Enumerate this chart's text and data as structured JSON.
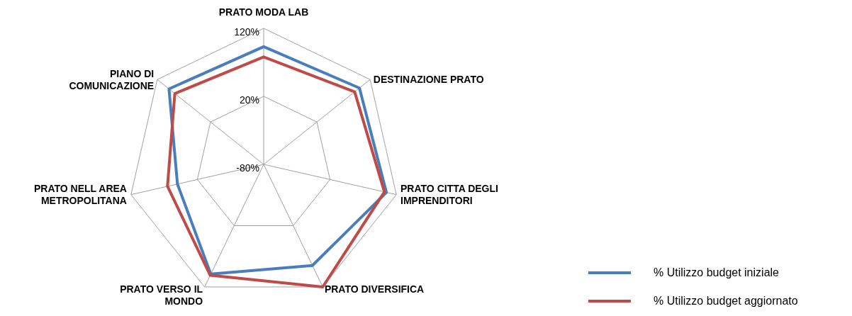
{
  "chart_data": {
    "type": "radar",
    "categories": [
      "PRATO MODA LAB",
      "DESTINAZIONE PRATO",
      "PRATO CITTA DEGLI IMPRENDITORI",
      "PRATO DIVERSIFICA",
      "PRATO VERSO IL MONDO",
      "PRATO NELL AREA METROPOLITANA",
      "PIANO DI COMUNICAZIONE"
    ],
    "series": [
      {
        "name": "% Utilizzo budget iniziale",
        "color": "#4a7ebb",
        "values": [
          93,
          100,
          105,
          85,
          99,
          50,
          98
        ]
      },
      {
        "name": "% Utilizzo budget aggiornato",
        "color": "#be4b48",
        "values": [
          78,
          91,
          102,
          120,
          101,
          65,
          87
        ]
      }
    ],
    "ylim": [
      -80,
      120
    ],
    "yticks": [
      {
        "value": -80,
        "label": "-80%"
      },
      {
        "value": 20,
        "label": "20%"
      },
      {
        "value": 120,
        "label": "120%"
      }
    ],
    "grid": true,
    "legend": "bottom right",
    "marker": "none",
    "line_style": "solid"
  }
}
